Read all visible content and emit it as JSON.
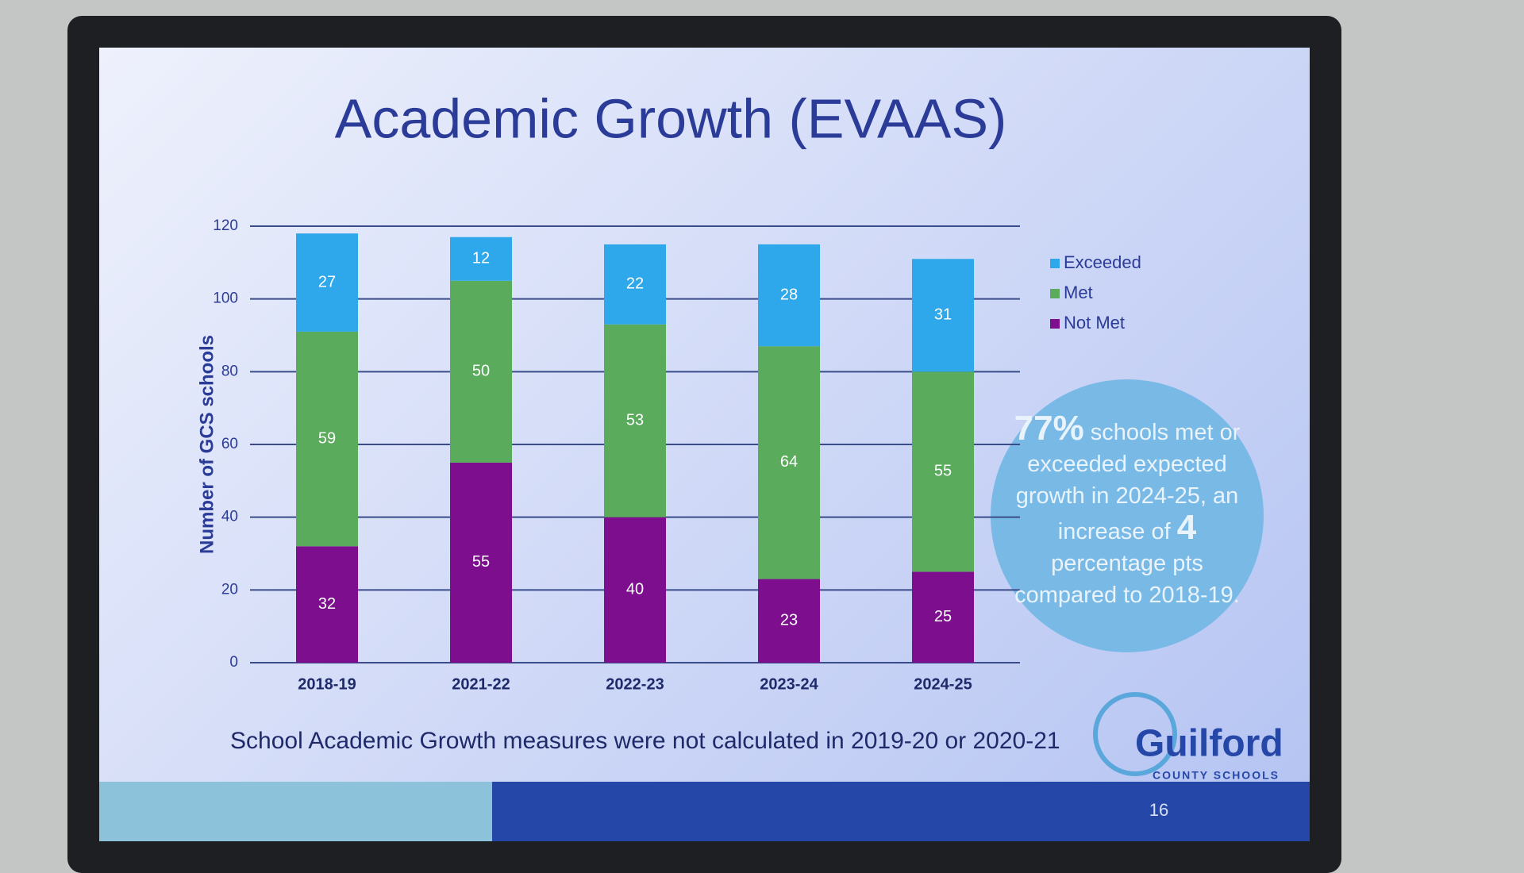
{
  "chart_data": {
    "type": "bar",
    "stacked": true,
    "title": "Academic Growth (EVAAS)",
    "y_label": "Number of GCS schools",
    "categories": [
      "2018-19",
      "2021-22",
      "2022-23",
      "2023-24",
      "2024-25"
    ],
    "series": [
      {
        "name": "Not Met",
        "color": "#7d0f8e",
        "values": [
          32,
          55,
          40,
          23,
          25
        ]
      },
      {
        "name": "Met",
        "color": "#5aab5c",
        "values": [
          59,
          50,
          53,
          64,
          55
        ]
      },
      {
        "name": "Exceeded",
        "color": "#2ea8ea",
        "values": [
          27,
          12,
          22,
          28,
          31
        ]
      }
    ],
    "ylim": [
      0,
      120
    ],
    "yticks": [
      0,
      20,
      40,
      60,
      80,
      100,
      120
    ],
    "grid": true,
    "legend": "right",
    "annotations": [
      "77%",
      "schools met or exceeded expected growth in 2024-25, an increase of",
      "4",
      "percentage pts compared to 2018-19."
    ]
  },
  "slide": {
    "footnote": "School Academic Growth measures were not calculated in 2019-20 or 2020-21",
    "logo_name": "Guilford",
    "logo_sub": "COUNTY SCHOOLS",
    "page_number": "16"
  }
}
